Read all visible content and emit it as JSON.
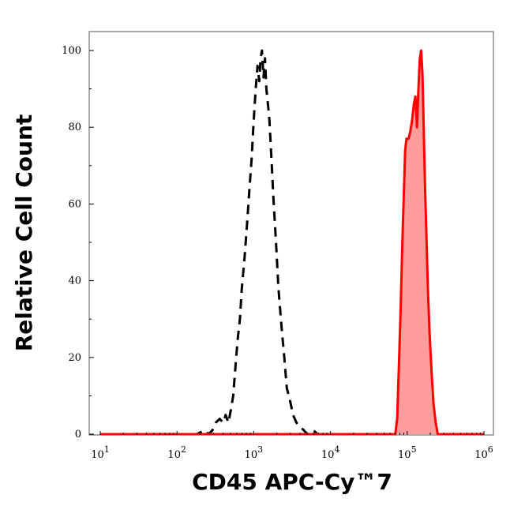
{
  "chart_data": {
    "type": "area",
    "title": "",
    "xlabel": "CD45 APC-Cy™7",
    "ylabel": "Relative Cell Count",
    "x_scale": "log",
    "xlim": [
      10,
      1000000
    ],
    "ylim": [
      0,
      100
    ],
    "grid": false,
    "legend": "none",
    "x_ticks": [
      {
        "base": "10",
        "exp": "1",
        "value": 10
      },
      {
        "base": "10",
        "exp": "2",
        "value": 100
      },
      {
        "base": "10",
        "exp": "3",
        "value": 1000
      },
      {
        "base": "10",
        "exp": "4",
        "value": 10000
      },
      {
        "base": "10",
        "exp": "5",
        "value": 100000
      },
      {
        "base": "10",
        "exp": "6",
        "value": 1000000
      }
    ],
    "y_ticks": [
      0,
      20,
      40,
      60,
      80,
      100
    ],
    "series": [
      {
        "style": "dashed",
        "color": "#000000",
        "fill": "none",
        "points": [
          [
            100,
            0
          ],
          [
            180,
            0
          ],
          [
            230,
            1
          ],
          [
            260,
            0
          ],
          [
            290,
            1
          ],
          [
            320,
            3
          ],
          [
            360,
            4
          ],
          [
            400,
            3
          ],
          [
            430,
            5
          ],
          [
            470,
            3
          ],
          [
            500,
            6
          ],
          [
            540,
            10
          ],
          [
            580,
            18
          ],
          [
            620,
            25
          ],
          [
            660,
            30
          ],
          [
            700,
            38
          ],
          [
            760,
            46
          ],
          [
            820,
            55
          ],
          [
            880,
            64
          ],
          [
            940,
            72
          ],
          [
            1000,
            82
          ],
          [
            1060,
            90
          ],
          [
            1120,
            96
          ],
          [
            1180,
            92
          ],
          [
            1230,
            98
          ],
          [
            1280,
            100
          ],
          [
            1340,
            93
          ],
          [
            1400,
            98
          ],
          [
            1460,
            90
          ],
          [
            1530,
            86
          ],
          [
            1600,
            82
          ],
          [
            1700,
            72
          ],
          [
            1800,
            62
          ],
          [
            1950,
            50
          ],
          [
            2100,
            38
          ],
          [
            2300,
            28
          ],
          [
            2500,
            20
          ],
          [
            2700,
            12
          ],
          [
            2950,
            9
          ],
          [
            3250,
            5
          ],
          [
            3600,
            3
          ],
          [
            4000,
            2
          ],
          [
            4500,
            1
          ],
          [
            5000,
            0
          ],
          [
            6000,
            1
          ],
          [
            6800,
            0
          ],
          [
            8000,
            0
          ]
        ]
      },
      {
        "style": "solid",
        "color": "#ff0000",
        "fill": "#ff9c9c",
        "points": [
          [
            10,
            0
          ],
          [
            70000,
            0
          ],
          [
            74000,
            4
          ],
          [
            78000,
            18
          ],
          [
            82000,
            32
          ],
          [
            86000,
            48
          ],
          [
            90000,
            62
          ],
          [
            94000,
            74
          ],
          [
            98000,
            77
          ],
          [
            104000,
            77
          ],
          [
            110000,
            79
          ],
          [
            116000,
            82
          ],
          [
            122000,
            86
          ],
          [
            128000,
            88
          ],
          [
            134000,
            80
          ],
          [
            140000,
            90
          ],
          [
            146000,
            98
          ],
          [
            152000,
            100
          ],
          [
            158000,
            94
          ],
          [
            164000,
            80
          ],
          [
            170000,
            66
          ],
          [
            178000,
            52
          ],
          [
            186000,
            38
          ],
          [
            196000,
            26
          ],
          [
            208000,
            16
          ],
          [
            220000,
            8
          ],
          [
            235000,
            3
          ],
          [
            250000,
            0
          ],
          [
            1000000,
            0
          ]
        ]
      }
    ]
  }
}
